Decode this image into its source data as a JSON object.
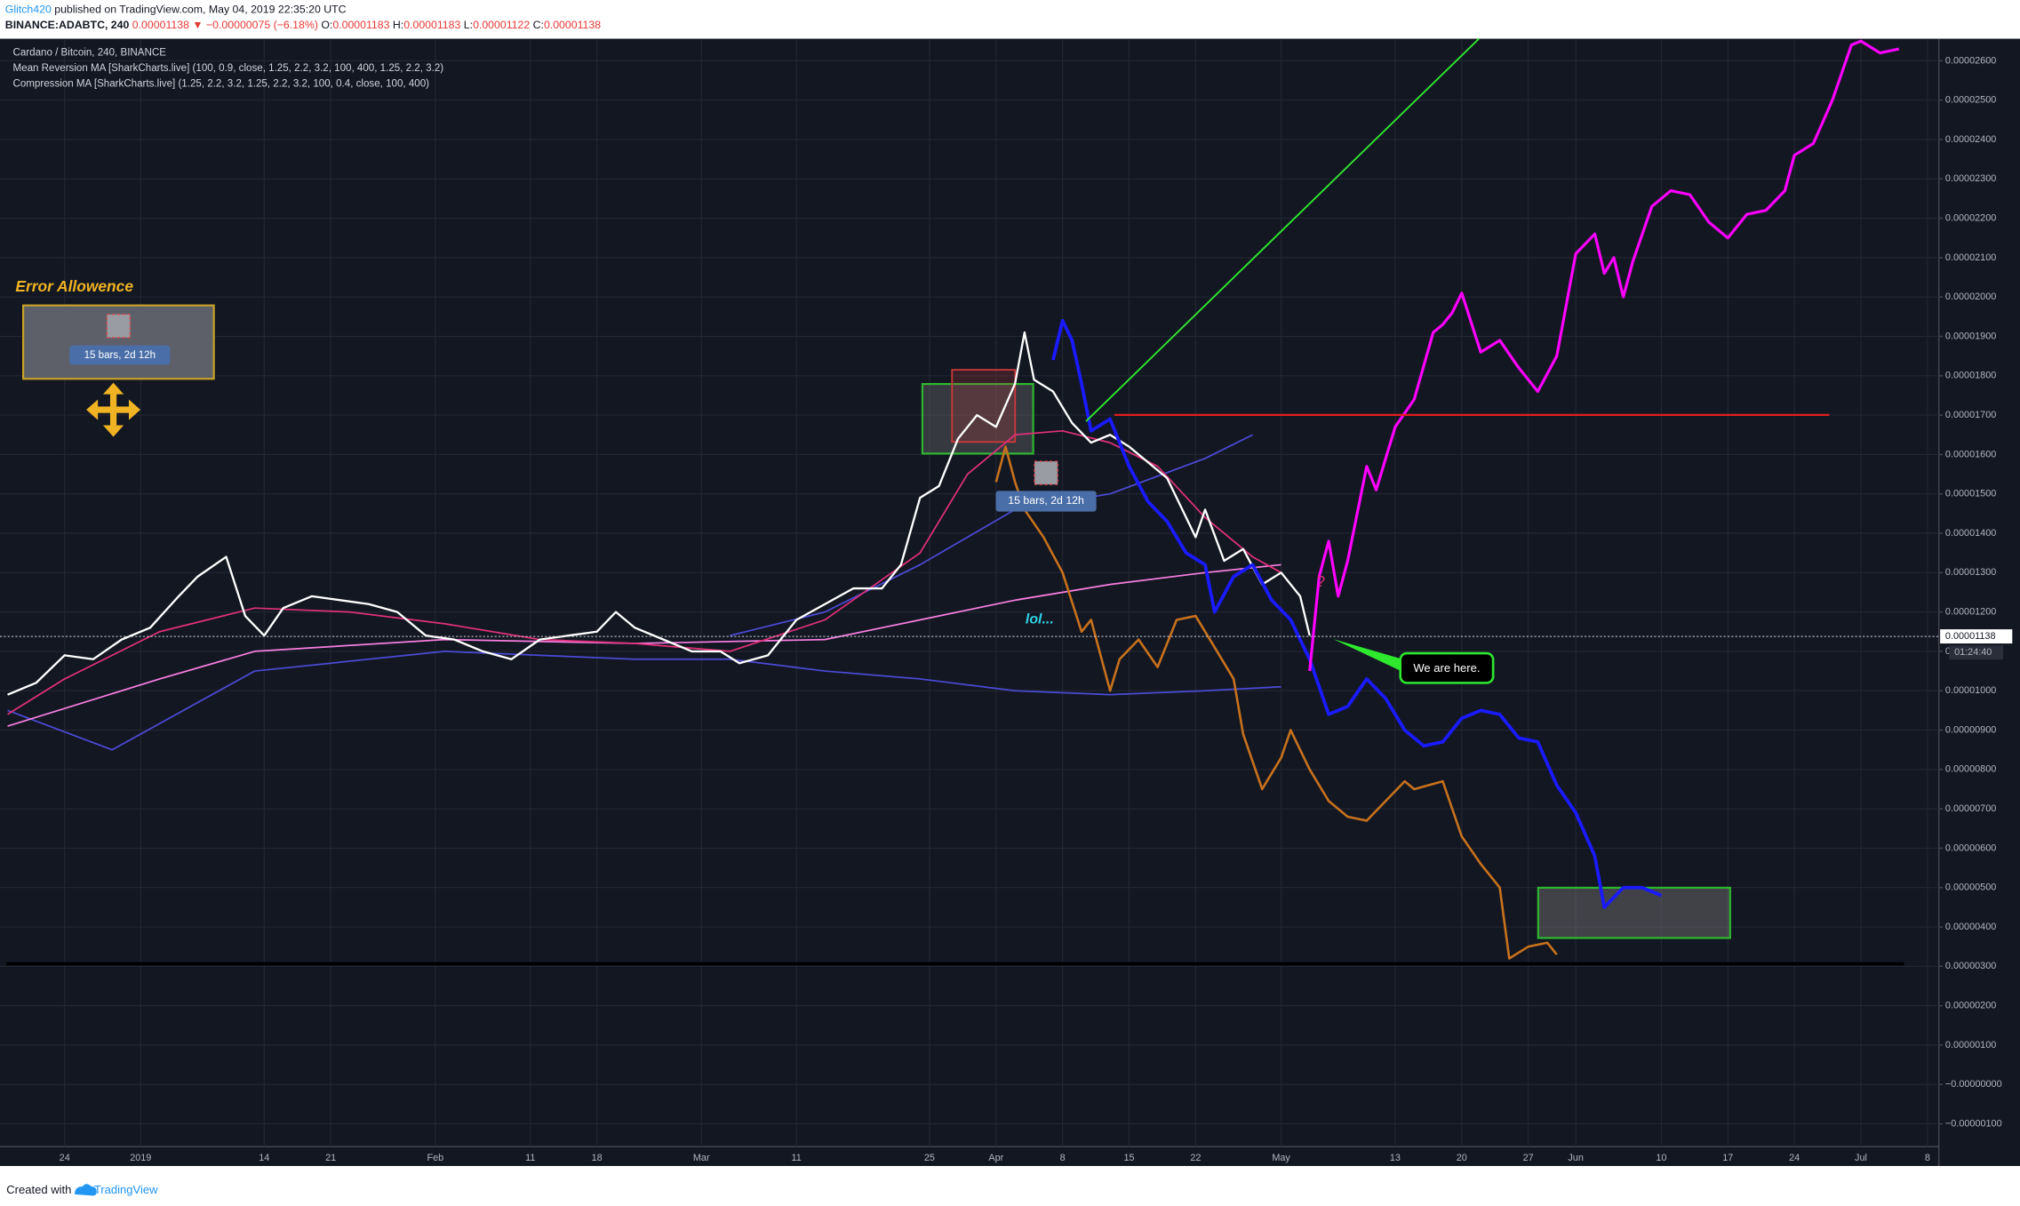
{
  "header": {
    "author": "Glitch420",
    "published": " published on TradingView.com, May 04, 2019 22:35:20 UTC",
    "symbol": "BINANCE:ADABTC, 240",
    "price": "0.00001138",
    "arrow": "▼",
    "change": "−0.00000075 (−6.18%)",
    "o_label": "O:",
    "o": "0.00001183",
    "h_label": "H:",
    "h": "0.00001183",
    "l_label": "L:",
    "l": "0.00001122",
    "c_label": "C:",
    "c": "0.00001138"
  },
  "footer": {
    "created": "Created with",
    "brand": "TradingView"
  },
  "chart_data": {
    "type": "line",
    "legend_lines": [
      "Cardano / Bitcoin, 240, BINANCE",
      "Mean Reversion MA [SharkCharts.live] (100, 0.9, close, 1.25, 2.2, 3.2, 100, 400, 1.25, 2.2, 3.2)",
      "Compression MA [SharkCharts.live] (1.25, 2.2, 3.2, 1.25, 2.2, 3.2, 100, 0.4, close, 100, 400)"
    ],
    "annotations": {
      "error_allowance": "Error Allowence",
      "measure_1": "15 bars, 2d 12h",
      "measure_2": "15 bars, 2d 12h",
      "lol": "lol...",
      "here": "We are here.",
      "question": "?"
    },
    "last_price": {
      "value": 1.138e-05,
      "label": "0.00001138"
    },
    "countdown": "01:24:40",
    "grid": true,
    "xlim": [
      -6.8,
      197.2
    ],
    "xticks": [
      {
        "value": 0,
        "label": "24"
      },
      {
        "value": 8,
        "label": "2019"
      },
      {
        "value": 21,
        "label": "14"
      },
      {
        "value": 28,
        "label": "21"
      },
      {
        "value": 39,
        "label": "Feb"
      },
      {
        "value": 49,
        "label": "11"
      },
      {
        "value": 56,
        "label": "18"
      },
      {
        "value": 67,
        "label": "Mar"
      },
      {
        "value": 77,
        "label": "11"
      },
      {
        "value": 91,
        "label": "25"
      },
      {
        "value": 98,
        "label": "Apr"
      },
      {
        "value": 105,
        "label": "8"
      },
      {
        "value": 112,
        "label": "15"
      },
      {
        "value": 119,
        "label": "22"
      },
      {
        "value": 128,
        "label": "May"
      },
      {
        "value": 140,
        "label": "13"
      },
      {
        "value": 147,
        "label": "20"
      },
      {
        "value": 154,
        "label": "27"
      },
      {
        "value": 159,
        "label": "Jun"
      },
      {
        "value": 168,
        "label": "10"
      },
      {
        "value": 175,
        "label": "17"
      },
      {
        "value": 182,
        "label": "24"
      },
      {
        "value": 189,
        "label": "Jul"
      },
      {
        "value": 196,
        "label": "8"
      }
    ],
    "ylim": [
      -1.58e-06,
      2.656e-05
    ],
    "yticks": [
      {
        "value": -1e-06,
        "label": "−0.00000100"
      },
      {
        "value": 0,
        "label": "−0.00000000"
      },
      {
        "value": 1e-06,
        "label": "0.00000100"
      },
      {
        "value": 2e-06,
        "label": "0.00000200"
      },
      {
        "value": 3e-06,
        "label": "0.00000300"
      },
      {
        "value": 4e-06,
        "label": "0.00000400"
      },
      {
        "value": 5e-06,
        "label": "0.00000500"
      },
      {
        "value": 6e-06,
        "label": "0.00000600"
      },
      {
        "value": 7e-06,
        "label": "0.00000700"
      },
      {
        "value": 8e-06,
        "label": "0.00000800"
      },
      {
        "value": 9e-06,
        "label": "0.00000900"
      },
      {
        "value": 1e-05,
        "label": "0.00001000"
      },
      {
        "value": 1.1e-05,
        "label": "0.00001100"
      },
      {
        "value": 1.2e-05,
        "label": "0.00001200"
      },
      {
        "value": 1.3e-05,
        "label": "0.00001300"
      },
      {
        "value": 1.4e-05,
        "label": "0.00001400"
      },
      {
        "value": 1.5e-05,
        "label": "0.00001500"
      },
      {
        "value": 1.6e-05,
        "label": "0.00001600"
      },
      {
        "value": 1.7e-05,
        "label": "0.00001700"
      },
      {
        "value": 1.8e-05,
        "label": "0.00001800"
      },
      {
        "value": 1.9e-05,
        "label": "0.00001900"
      },
      {
        "value": 2e-05,
        "label": "0.00002000"
      },
      {
        "value": 2.1e-05,
        "label": "0.00002100"
      },
      {
        "value": 2.2e-05,
        "label": "0.00002200"
      },
      {
        "value": 2.3e-05,
        "label": "0.00002300"
      },
      {
        "value": 2.4e-05,
        "label": "0.00002400"
      },
      {
        "value": 2.5e-05,
        "label": "0.00002500"
      },
      {
        "value": 2.6e-05,
        "label": "0.00002600"
      }
    ],
    "series": [
      {
        "color": "#4b4bd6",
        "x": [
          -6,
          5,
          20,
          40,
          60,
          70,
          80,
          90,
          100,
          110,
          120,
          128
        ],
        "values": [
          9.5e-06,
          8.5e-06,
          1.05e-05,
          1.1e-05,
          1.08e-05,
          1.08e-05,
          1.05e-05,
          1.03e-05,
          1e-05,
          9.9e-06,
          1e-05,
          1.01e-05
        ]
      },
      {
        "color": "#4b4bd6",
        "x": [
          70,
          80,
          90,
          100,
          110,
          120,
          125
        ],
        "values": [
          1.14e-05,
          1.2e-05,
          1.32e-05,
          1.46e-05,
          1.5e-05,
          1.59e-05,
          1.65e-05
        ]
      },
      {
        "color": "#f77fe0",
        "x": [
          -6,
          10,
          20,
          40,
          60,
          80,
          90,
          100,
          110,
          120,
          128
        ],
        "values": [
          9.1e-06,
          1.03e-05,
          1.1e-05,
          1.13e-05,
          1.12e-05,
          1.13e-05,
          1.18e-05,
          1.23e-05,
          1.27e-05,
          1.3e-05,
          1.32e-05
        ]
      },
      {
        "color": "#e0307a",
        "x": [
          -6,
          0,
          10,
          20,
          30,
          40,
          50,
          60,
          70,
          80,
          90,
          95,
          100,
          105,
          110,
          115,
          120,
          125,
          128
        ],
        "values": [
          9.4e-06,
          1.03e-05,
          1.15e-05,
          1.21e-05,
          1.2e-05,
          1.17e-05,
          1.13e-05,
          1.12e-05,
          1.1e-05,
          1.18e-05,
          1.35e-05,
          1.55e-05,
          1.65e-05,
          1.66e-05,
          1.63e-05,
          1.57e-05,
          1.44e-05,
          1.34e-05,
          1.3e-05
        ]
      },
      {
        "color": "#c8711c",
        "x": [
          98,
          99,
          100,
          101,
          103,
          105,
          107,
          108,
          110,
          111,
          113,
          115,
          117,
          119,
          121,
          123,
          124,
          126,
          128,
          129,
          131,
          133,
          135,
          137,
          139,
          141,
          142,
          145,
          147,
          149,
          151,
          152,
          154,
          156,
          157
        ],
        "values": [
          1.53e-05,
          1.62e-05,
          1.53e-05,
          1.46e-05,
          1.39e-05,
          1.3e-05,
          1.15e-05,
          1.18e-05,
          1e-05,
          1.08e-05,
          1.13e-05,
          1.06e-05,
          1.18e-05,
          1.19e-05,
          1.11e-05,
          1.03e-05,
          8.9e-06,
          7.5e-06,
          8.3e-06,
          9e-06,
          8e-06,
          7.2e-06,
          6.8e-06,
          6.7e-06,
          7.2e-06,
          7.7e-06,
          7.5e-06,
          7.7e-06,
          6.3e-06,
          5.6e-06,
          5e-06,
          3.2e-06,
          3.5e-06,
          3.6e-06,
          3.3e-06
        ]
      },
      {
        "color": "#ffffff",
        "x": [
          -6,
          -3,
          0,
          3,
          6,
          9,
          12,
          14,
          17,
          19,
          21,
          23,
          26,
          29,
          32,
          35,
          38,
          41,
          44,
          47,
          50,
          53,
          56,
          58,
          60,
          63,
          66,
          69,
          71,
          74,
          77,
          80,
          83,
          86,
          88,
          90,
          92,
          94,
          96,
          98,
          100,
          101,
          102,
          104,
          106,
          108,
          110,
          112,
          114,
          116,
          118,
          119,
          120,
          122,
          124,
          126,
          128,
          130,
          131
        ],
        "values": [
          9.9e-06,
          1.02e-05,
          1.09e-05,
          1.08e-05,
          1.13e-05,
          1.16e-05,
          1.24e-05,
          1.29e-05,
          1.34e-05,
          1.19e-05,
          1.14e-05,
          1.21e-05,
          1.24e-05,
          1.23e-05,
          1.22e-05,
          1.2e-05,
          1.14e-05,
          1.13e-05,
          1.1e-05,
          1.08e-05,
          1.13e-05,
          1.14e-05,
          1.15e-05,
          1.2e-05,
          1.16e-05,
          1.13e-05,
          1.1e-05,
          1.1e-05,
          1.07e-05,
          1.09e-05,
          1.18e-05,
          1.22e-05,
          1.26e-05,
          1.26e-05,
          1.32e-05,
          1.49e-05,
          1.52e-05,
          1.64e-05,
          1.7e-05,
          1.67e-05,
          1.78e-05,
          1.91e-05,
          1.79e-05,
          1.76e-05,
          1.68e-05,
          1.63e-05,
          1.65e-05,
          1.62e-05,
          1.58e-05,
          1.54e-05,
          1.44e-05,
          1.39e-05,
          1.46e-05,
          1.33e-05,
          1.36e-05,
          1.27e-05,
          1.3e-05,
          1.24e-05,
          1.14e-05
        ]
      },
      {
        "color": "#1a1aff",
        "x": [
          104,
          105,
          106,
          107,
          108,
          110,
          112,
          114,
          116,
          118,
          120,
          121,
          123,
          125,
          127,
          129,
          131,
          133,
          135,
          137,
          139,
          141,
          143,
          145,
          147,
          149,
          151,
          153,
          155,
          157,
          159,
          161,
          162,
          164,
          166,
          168
        ],
        "values": [
          1.84e-05,
          1.94e-05,
          1.89e-05,
          1.78e-05,
          1.66e-05,
          1.69e-05,
          1.57e-05,
          1.48e-05,
          1.43e-05,
          1.35e-05,
          1.32e-05,
          1.2e-05,
          1.29e-05,
          1.32e-05,
          1.23e-05,
          1.18e-05,
          1.08e-05,
          9.4e-06,
          9.6e-06,
          1.03e-05,
          9.8e-06,
          9e-06,
          8.6e-06,
          8.7e-06,
          9.3e-06,
          9.5e-06,
          9.4e-06,
          8.8e-06,
          8.7e-06,
          7.6e-06,
          6.9e-06,
          5.8e-06,
          4.5e-06,
          5e-06,
          5e-06,
          4.8e-06
        ]
      },
      {
        "color": "#ff00ff",
        "x": [
          131,
          132,
          133,
          134,
          135,
          137,
          138,
          140,
          142,
          144,
          145,
          146,
          147,
          149,
          151,
          153,
          155,
          157,
          159,
          161,
          162,
          163,
          164,
          165,
          167,
          169,
          171,
          173,
          175,
          177,
          179,
          181,
          182,
          184,
          186,
          188,
          189,
          191,
          193
        ],
        "values": [
          1.05e-05,
          1.29e-05,
          1.38e-05,
          1.24e-05,
          1.33e-05,
          1.57e-05,
          1.51e-05,
          1.67e-05,
          1.74e-05,
          1.91e-05,
          1.93e-05,
          1.96e-05,
          2.01e-05,
          1.86e-05,
          1.89e-05,
          1.82e-05,
          1.76e-05,
          1.85e-05,
          2.11e-05,
          2.16e-05,
          2.06e-05,
          2.1e-05,
          2e-05,
          2.09e-05,
          2.23e-05,
          2.27e-05,
          2.26e-05,
          2.19e-05,
          2.15e-05,
          2.21e-05,
          2.22e-05,
          2.27e-05,
          2.36e-05,
          2.39e-05,
          2.5e-05,
          2.64e-05,
          2.65e-05,
          2.62e-05,
          2.63e-05
        ]
      }
    ]
  }
}
